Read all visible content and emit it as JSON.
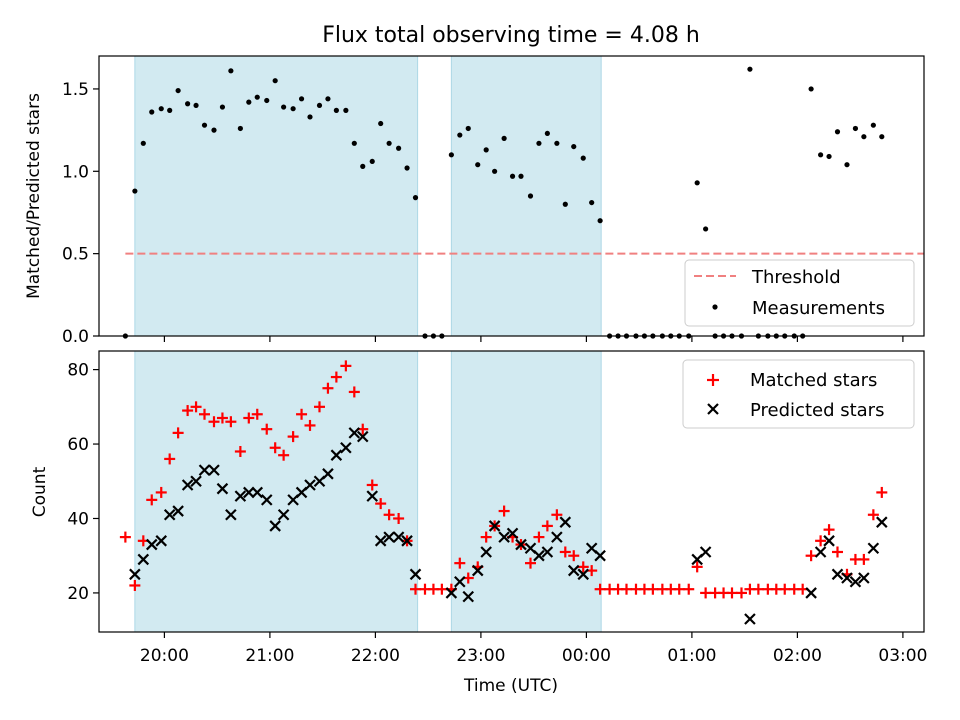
{
  "chart_data": [
    {
      "type": "scatter",
      "title": "Flux total observing time = 4.08 h",
      "xlabel": "",
      "ylabel": "Matched/Predicted stars",
      "ylim": [
        0,
        1.7
      ],
      "yticks": [
        0.0,
        0.5,
        1.0,
        1.5
      ],
      "ytick_labels": [
        "0.0",
        "0.5",
        "1.0",
        "1.5"
      ],
      "xlim_hours": [
        19.38,
        27.2
      ],
      "observing_windows_hours": [
        [
          19.72,
          22.4
        ],
        [
          22.72,
          24.14
        ]
      ],
      "threshold": {
        "name": "Threshold",
        "y": 0.5,
        "x_range_hours": [
          19.63,
          28.82
        ],
        "color": "#f08080"
      },
      "legend": {
        "location": "lower right",
        "entries": [
          "Threshold",
          "Measurements"
        ]
      },
      "series": [
        {
          "name": "Measurements",
          "color": "#000000",
          "points_hours": [
            [
              19.63,
              0.0
            ],
            [
              19.72,
              0.88
            ],
            [
              19.8,
              1.17
            ],
            [
              19.88,
              1.36
            ],
            [
              19.97,
              1.38
            ],
            [
              20.05,
              1.37
            ],
            [
              20.13,
              1.49
            ],
            [
              20.22,
              1.41
            ],
            [
              20.3,
              1.4
            ],
            [
              20.38,
              1.28
            ],
            [
              20.47,
              1.25
            ],
            [
              20.55,
              1.39
            ],
            [
              20.63,
              1.61
            ],
            [
              20.72,
              1.26
            ],
            [
              20.8,
              1.42
            ],
            [
              20.88,
              1.45
            ],
            [
              20.97,
              1.43
            ],
            [
              21.05,
              1.55
            ],
            [
              21.13,
              1.39
            ],
            [
              21.22,
              1.38
            ],
            [
              21.3,
              1.44
            ],
            [
              21.38,
              1.33
            ],
            [
              21.47,
              1.4
            ],
            [
              21.55,
              1.44
            ],
            [
              21.63,
              1.37
            ],
            [
              21.72,
              1.37
            ],
            [
              21.8,
              1.17
            ],
            [
              21.88,
              1.03
            ],
            [
              21.97,
              1.06
            ],
            [
              22.05,
              1.29
            ],
            [
              22.13,
              1.17
            ],
            [
              22.22,
              1.14
            ],
            [
              22.3,
              1.02
            ],
            [
              22.38,
              0.84
            ],
            [
              22.47,
              0.0
            ],
            [
              22.55,
              0.0
            ],
            [
              22.63,
              0.0
            ],
            [
              22.72,
              1.1
            ],
            [
              22.8,
              1.22
            ],
            [
              22.88,
              1.26
            ],
            [
              22.97,
              1.04
            ],
            [
              23.05,
              1.13
            ],
            [
              23.13,
              1.0
            ],
            [
              23.22,
              1.2
            ],
            [
              23.3,
              0.97
            ],
            [
              23.38,
              0.97
            ],
            [
              23.47,
              0.85
            ],
            [
              23.55,
              1.17
            ],
            [
              23.63,
              1.23
            ],
            [
              23.72,
              1.17
            ],
            [
              23.8,
              0.8
            ],
            [
              23.88,
              1.15
            ],
            [
              23.97,
              1.08
            ],
            [
              24.05,
              0.81
            ],
            [
              24.13,
              0.7
            ],
            [
              24.22,
              0.0
            ],
            [
              24.3,
              0.0
            ],
            [
              24.38,
              0.0
            ],
            [
              24.47,
              0.0
            ],
            [
              24.55,
              0.0
            ],
            [
              24.63,
              0.0
            ],
            [
              24.72,
              0.0
            ],
            [
              24.8,
              0.0
            ],
            [
              24.88,
              0.0
            ],
            [
              24.97,
              0.0
            ],
            [
              25.05,
              0.93
            ],
            [
              25.13,
              0.65
            ],
            [
              25.22,
              0.0
            ],
            [
              25.3,
              0.0
            ],
            [
              25.38,
              0.0
            ],
            [
              25.47,
              0.0
            ],
            [
              25.55,
              1.62
            ],
            [
              25.63,
              0.0
            ],
            [
              25.72,
              0.0
            ],
            [
              25.8,
              0.0
            ],
            [
              25.88,
              0.0
            ],
            [
              25.97,
              0.0
            ],
            [
              26.05,
              0.0
            ],
            [
              26.13,
              1.5
            ],
            [
              26.22,
              1.1
            ],
            [
              26.3,
              1.09
            ],
            [
              26.38,
              1.24
            ],
            [
              26.47,
              1.04
            ],
            [
              26.55,
              1.26
            ],
            [
              26.63,
              1.21
            ],
            [
              26.72,
              1.28
            ],
            [
              26.8,
              1.21
            ]
          ]
        }
      ]
    },
    {
      "type": "scatter",
      "title": "",
      "xlabel": "Time (UTC)",
      "ylabel": "Count",
      "ylim": [
        9.5,
        85
      ],
      "yticks": [
        20,
        40,
        60,
        80
      ],
      "ytick_labels": [
        "20",
        "40",
        "60",
        "80"
      ],
      "xlim_hours": [
        19.38,
        27.2
      ],
      "xticks_hours": [
        20,
        21,
        22,
        23,
        24,
        25,
        26,
        27
      ],
      "xtick_labels": [
        "20:00",
        "21:00",
        "22:00",
        "23:00",
        "00:00",
        "01:00",
        "02:00",
        "03:00"
      ],
      "observing_windows_hours": [
        [
          19.72,
          22.4
        ],
        [
          22.72,
          24.14
        ]
      ],
      "legend": {
        "location": "upper right",
        "entries": [
          "Matched stars",
          "Predicted stars"
        ]
      },
      "series": [
        {
          "name": "Matched stars",
          "marker": "plus",
          "color": "#ff0000",
          "points_hours": [
            [
              19.63,
              35
            ],
            [
              19.72,
              22
            ],
            [
              19.8,
              34
            ],
            [
              19.88,
              45
            ],
            [
              19.97,
              47
            ],
            [
              20.05,
              56
            ],
            [
              20.13,
              63
            ],
            [
              20.22,
              69
            ],
            [
              20.3,
              70
            ],
            [
              20.38,
              68
            ],
            [
              20.47,
              66
            ],
            [
              20.55,
              67
            ],
            [
              20.63,
              66
            ],
            [
              20.72,
              58
            ],
            [
              20.8,
              67
            ],
            [
              20.88,
              68
            ],
            [
              20.97,
              64
            ],
            [
              21.05,
              59
            ],
            [
              21.13,
              57
            ],
            [
              21.22,
              62
            ],
            [
              21.3,
              68
            ],
            [
              21.38,
              65
            ],
            [
              21.47,
              70
            ],
            [
              21.55,
              75
            ],
            [
              21.63,
              78
            ],
            [
              21.72,
              81
            ],
            [
              21.8,
              74
            ],
            [
              21.88,
              64
            ],
            [
              21.97,
              49
            ],
            [
              22.05,
              44
            ],
            [
              22.13,
              41
            ],
            [
              22.22,
              40
            ],
            [
              22.3,
              34
            ],
            [
              22.38,
              21
            ],
            [
              22.47,
              21
            ],
            [
              22.55,
              21
            ],
            [
              22.63,
              21
            ],
            [
              22.72,
              21
            ],
            [
              22.8,
              28
            ],
            [
              22.88,
              24
            ],
            [
              22.97,
              27
            ],
            [
              23.05,
              35
            ],
            [
              23.13,
              38
            ],
            [
              23.22,
              42
            ],
            [
              23.3,
              35
            ],
            [
              23.38,
              33
            ],
            [
              23.47,
              28
            ],
            [
              23.55,
              35
            ],
            [
              23.63,
              38
            ],
            [
              23.72,
              41
            ],
            [
              23.8,
              31
            ],
            [
              23.88,
              30
            ],
            [
              23.97,
              27
            ],
            [
              24.05,
              26
            ],
            [
              24.13,
              21
            ],
            [
              24.22,
              21
            ],
            [
              24.3,
              21
            ],
            [
              24.38,
              21
            ],
            [
              24.47,
              21
            ],
            [
              24.55,
              21
            ],
            [
              24.63,
              21
            ],
            [
              24.72,
              21
            ],
            [
              24.8,
              21
            ],
            [
              24.88,
              21
            ],
            [
              24.97,
              21
            ],
            [
              25.05,
              27
            ],
            [
              25.13,
              20
            ],
            [
              25.22,
              20
            ],
            [
              25.3,
              20
            ],
            [
              25.38,
              20
            ],
            [
              25.47,
              20
            ],
            [
              25.55,
              21
            ],
            [
              25.63,
              21
            ],
            [
              25.72,
              21
            ],
            [
              25.8,
              21
            ],
            [
              25.88,
              21
            ],
            [
              25.97,
              21
            ],
            [
              26.05,
              21
            ],
            [
              26.13,
              30
            ],
            [
              26.22,
              34
            ],
            [
              26.3,
              37
            ],
            [
              26.38,
              31
            ],
            [
              26.47,
              25
            ],
            [
              26.55,
              29
            ],
            [
              26.63,
              29
            ],
            [
              26.72,
              41
            ],
            [
              26.8,
              47
            ]
          ]
        },
        {
          "name": "Predicted stars",
          "marker": "x",
          "color": "#000000",
          "points_hours": [
            [
              19.72,
              25
            ],
            [
              19.8,
              29
            ],
            [
              19.88,
              33
            ],
            [
              19.97,
              34
            ],
            [
              20.05,
              41
            ],
            [
              20.13,
              42
            ],
            [
              20.22,
              49
            ],
            [
              20.3,
              50
            ],
            [
              20.38,
              53
            ],
            [
              20.47,
              53
            ],
            [
              20.55,
              48
            ],
            [
              20.63,
              41
            ],
            [
              20.72,
              46
            ],
            [
              20.8,
              47
            ],
            [
              20.88,
              47
            ],
            [
              20.97,
              45
            ],
            [
              21.05,
              38
            ],
            [
              21.13,
              41
            ],
            [
              21.22,
              45
            ],
            [
              21.3,
              47
            ],
            [
              21.38,
              49
            ],
            [
              21.47,
              50
            ],
            [
              21.55,
              52
            ],
            [
              21.63,
              57
            ],
            [
              21.72,
              59
            ],
            [
              21.8,
              63
            ],
            [
              21.88,
              62
            ],
            [
              21.97,
              46
            ],
            [
              22.05,
              34
            ],
            [
              22.13,
              35
            ],
            [
              22.22,
              35
            ],
            [
              22.3,
              34
            ],
            [
              22.38,
              25
            ],
            [
              22.72,
              20
            ],
            [
              22.8,
              23
            ],
            [
              22.88,
              19
            ],
            [
              22.97,
              26
            ],
            [
              23.05,
              31
            ],
            [
              23.13,
              38
            ],
            [
              23.22,
              35
            ],
            [
              23.3,
              36
            ],
            [
              23.38,
              33
            ],
            [
              23.47,
              32
            ],
            [
              23.55,
              30
            ],
            [
              23.63,
              31
            ],
            [
              23.72,
              35
            ],
            [
              23.8,
              39
            ],
            [
              23.88,
              26
            ],
            [
              23.97,
              25
            ],
            [
              24.05,
              32
            ],
            [
              24.13,
              30
            ],
            [
              25.05,
              29
            ],
            [
              25.13,
              31
            ],
            [
              25.55,
              13
            ],
            [
              26.13,
              20
            ],
            [
              26.22,
              31
            ],
            [
              26.3,
              34
            ],
            [
              26.38,
              25
            ],
            [
              26.47,
              24
            ],
            [
              26.55,
              23
            ],
            [
              26.63,
              24
            ],
            [
              26.72,
              32
            ],
            [
              26.8,
              39
            ]
          ]
        }
      ]
    }
  ]
}
